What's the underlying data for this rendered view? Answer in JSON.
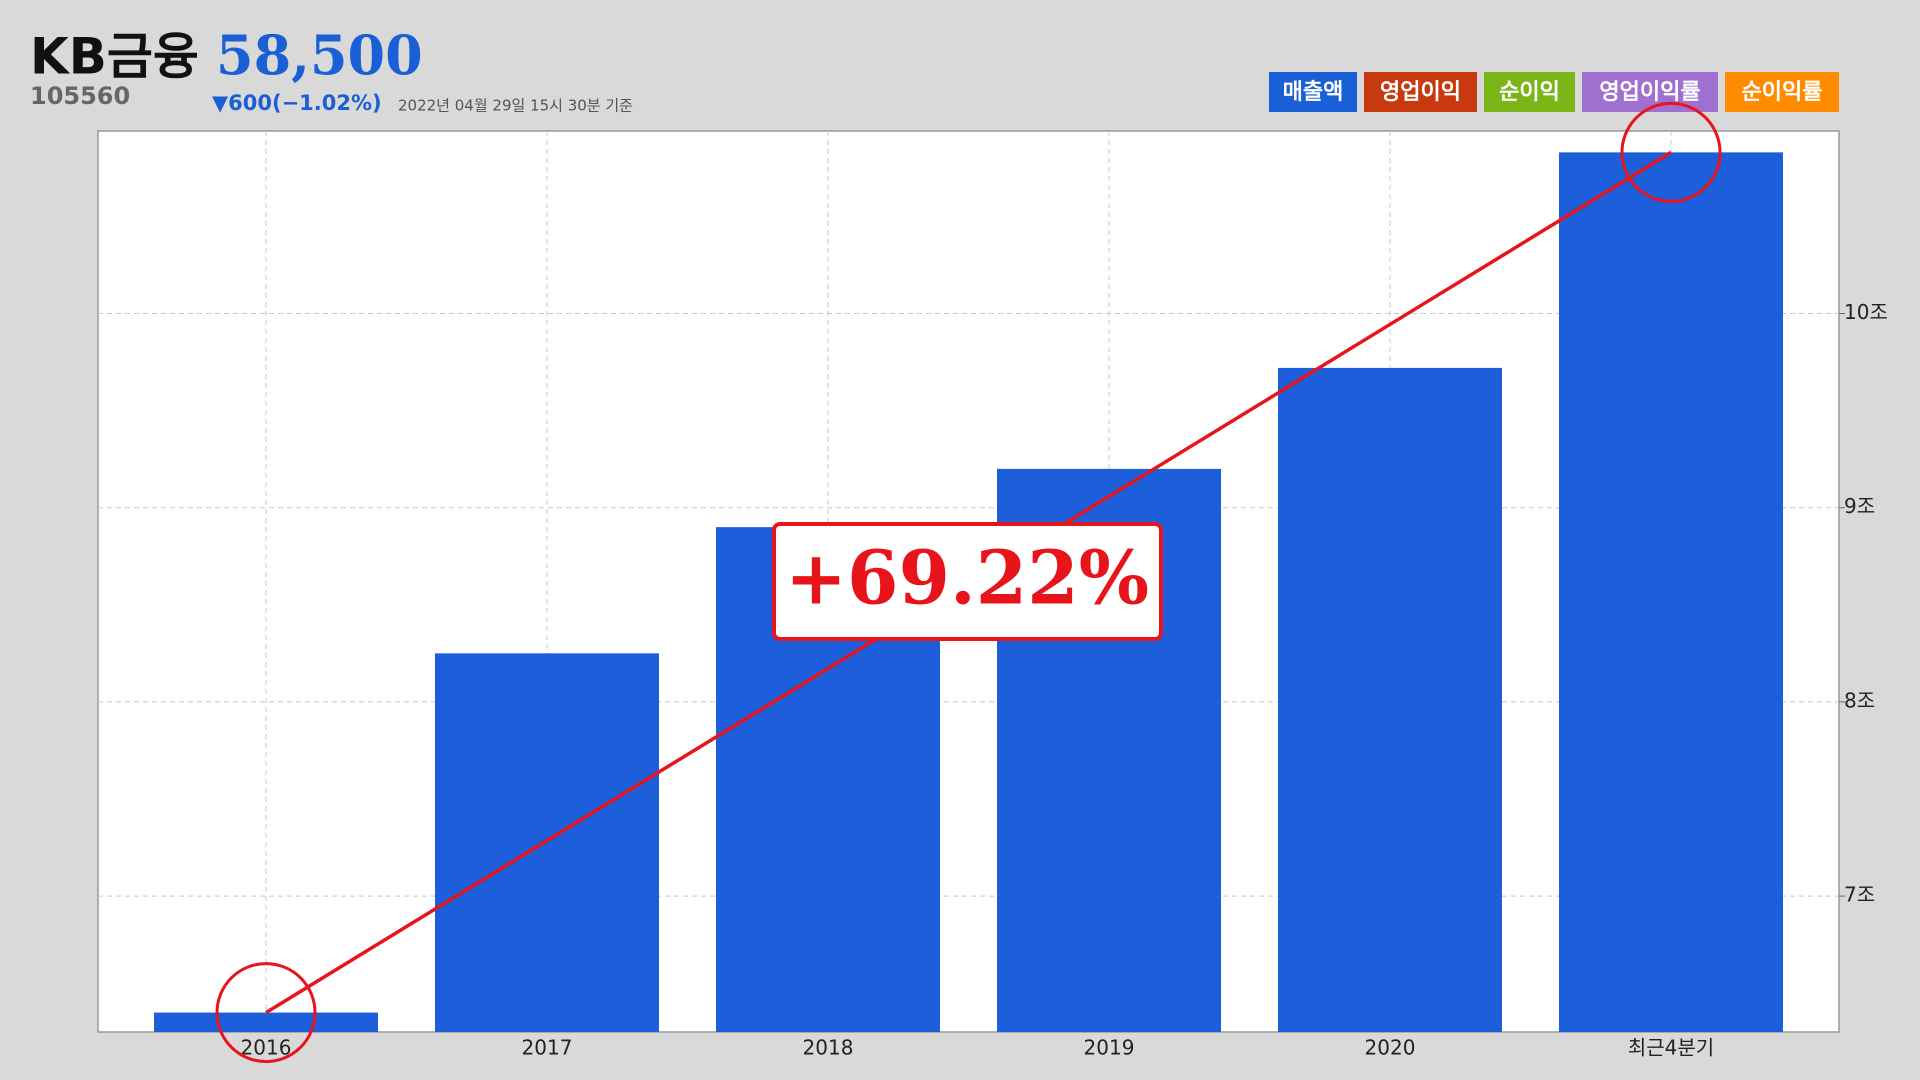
{
  "header": {
    "name": "KB금융",
    "price": "58,500",
    "code": "105560",
    "change": "▼600(−1.02%)",
    "timestamp": "2022년 04월 29일 15시 30분 기준"
  },
  "metric_tabs": [
    {
      "label": "매출액",
      "color": "#1a5fd6"
    },
    {
      "label": "영업이익",
      "color": "#c8390f"
    },
    {
      "label": "순이익",
      "color": "#7cb518"
    },
    {
      "label": "영업이익률",
      "color": "#a070d0"
    },
    {
      "label": "순이익률",
      "color": "#ff8c00"
    }
  ],
  "chart_data": {
    "type": "bar",
    "categories": [
      "2016",
      "2017",
      "2018",
      "2019",
      "2020",
      "최근4분기"
    ],
    "series": [
      {
        "color": "#1d5fdb",
        "values": [
          6.4,
          8.25,
          8.9,
          9.2,
          9.72,
          10.83
        ]
      }
    ],
    "ylim": [
      6.3,
      10.94
    ],
    "yticks": [
      {
        "value": 7,
        "label": "7조"
      },
      {
        "value": 8,
        "label": "8조"
      },
      {
        "value": 9,
        "label": "9조"
      },
      {
        "value": 10,
        "label": "10조"
      }
    ],
    "grid": true,
    "annotations": [
      "+69.22%"
    ]
  }
}
